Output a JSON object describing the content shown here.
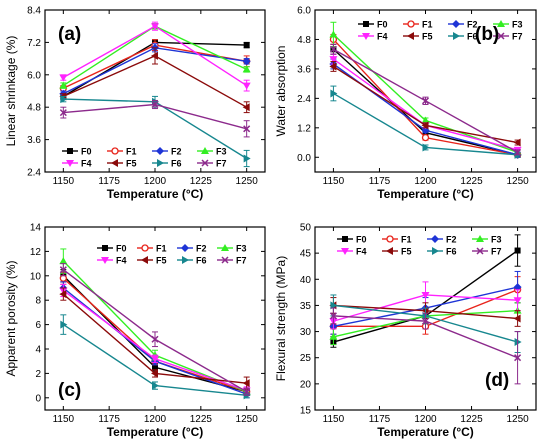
{
  "colors": {
    "F0": "#000000",
    "F1": "#e8241b",
    "F2": "#1e34d6",
    "F3": "#33ee22",
    "F4": "#ff22ff",
    "F5": "#8b0a0a",
    "F6": "#17878f",
    "F7": "#8c2a8c"
  },
  "markers": {
    "F0": "square",
    "F1": "circle",
    "F2": "diamond",
    "F3": "triangle-up",
    "F4": "triangle-down",
    "F5": "triangle-left",
    "F6": "triangle-right",
    "F7": "x"
  },
  "chart_data": [
    {
      "type": "line",
      "panel_label": "(a)",
      "xlabel": "Temperature (°C)",
      "ylabel": "Linear shrinkage (%)",
      "xlim": [
        1140,
        1260
      ],
      "ylim": [
        2.4,
        8.4
      ],
      "xticks": [
        1150,
        1175,
        1200,
        1225,
        1250
      ],
      "yticks": [
        2.4,
        3.6,
        4.8,
        6.0,
        7.2,
        8.4
      ],
      "legend": "bottom-center, 4 columns",
      "x": [
        1150,
        1200,
        1250
      ],
      "series": [
        {
          "name": "F0",
          "values": [
            5.2,
            7.2,
            7.1
          ],
          "err": [
            0.1,
            0.1,
            0.1
          ]
        },
        {
          "name": "F1",
          "values": [
            5.5,
            7.1,
            6.5
          ],
          "err": [
            0.1,
            0.2,
            0.2
          ]
        },
        {
          "name": "F2",
          "values": [
            5.3,
            7.0,
            6.5
          ],
          "err": [
            0.1,
            0.15,
            0.1
          ]
        },
        {
          "name": "F3",
          "values": [
            5.6,
            7.8,
            6.2
          ],
          "err": [
            0.1,
            0.1,
            0.1
          ]
        },
        {
          "name": "F4",
          "values": [
            5.9,
            7.8,
            5.6
          ],
          "err": [
            0.1,
            0.15,
            0.2
          ]
        },
        {
          "name": "F5",
          "values": [
            5.2,
            6.7,
            4.8
          ],
          "err": [
            0.1,
            0.3,
            0.2
          ]
        },
        {
          "name": "F6",
          "values": [
            5.1,
            5.0,
            2.9
          ],
          "err": [
            0.1,
            0.2,
            0.3
          ]
        },
        {
          "name": "F7",
          "values": [
            4.6,
            4.9,
            4.0
          ],
          "err": [
            0.2,
            0.15,
            0.3
          ]
        }
      ]
    },
    {
      "type": "line",
      "panel_label": "(b)",
      "xlabel": "Temperature (°C)",
      "ylabel": "Water absorption",
      "xlim": [
        1140,
        1260
      ],
      "ylim": [
        -0.6,
        6.0
      ],
      "xticks": [
        1150,
        1175,
        1200,
        1225,
        1250
      ],
      "yticks": [
        0.0,
        1.2,
        2.4,
        3.6,
        4.8,
        6.0
      ],
      "legend": "top-right, 4 columns",
      "x": [
        1150,
        1200,
        1250
      ],
      "series": [
        {
          "name": "F0",
          "values": [
            4.4,
            1.0,
            0.1
          ],
          "err": [
            0.2,
            0.1,
            0.1
          ]
        },
        {
          "name": "F1",
          "values": [
            4.8,
            0.8,
            0.1
          ],
          "err": [
            0.2,
            0.1,
            0.1
          ]
        },
        {
          "name": "F2",
          "values": [
            3.8,
            1.1,
            0.1
          ],
          "err": [
            0.2,
            0.1,
            0.1
          ]
        },
        {
          "name": "F3",
          "values": [
            5.0,
            1.5,
            0.2
          ],
          "err": [
            0.5,
            0.1,
            0.1
          ]
        },
        {
          "name": "F4",
          "values": [
            4.0,
            1.3,
            0.3
          ],
          "err": [
            0.2,
            0.1,
            0.1
          ]
        },
        {
          "name": "F5",
          "values": [
            3.7,
            1.3,
            0.6
          ],
          "err": [
            0.2,
            0.1,
            0.1
          ]
        },
        {
          "name": "F6",
          "values": [
            2.6,
            0.4,
            0.1
          ],
          "err": [
            0.3,
            0.1,
            0.1
          ]
        },
        {
          "name": "F7",
          "values": [
            4.4,
            2.3,
            0.2
          ],
          "err": [
            0.2,
            0.15,
            0.1
          ]
        }
      ]
    },
    {
      "type": "line",
      "panel_label": "(c)",
      "xlabel": "Temperature (°C)",
      "ylabel": "Apparent porosity (%)",
      "xlim": [
        1140,
        1260
      ],
      "ylim": [
        -1,
        14
      ],
      "xticks": [
        1150,
        1175,
        1200,
        1225,
        1250
      ],
      "yticks": [
        0,
        2,
        4,
        6,
        8,
        10,
        12,
        14
      ],
      "legend": "top-right, 4 columns",
      "x": [
        1150,
        1200,
        1250
      ],
      "series": [
        {
          "name": "F0",
          "values": [
            10.0,
            2.5,
            0.5
          ],
          "err": [
            0.5,
            0.3,
            0.3
          ]
        },
        {
          "name": "F1",
          "values": [
            9.8,
            3.0,
            0.5
          ],
          "err": [
            0.5,
            0.3,
            0.3
          ]
        },
        {
          "name": "F2",
          "values": [
            9.0,
            3.0,
            0.3
          ],
          "err": [
            0.5,
            0.3,
            0.3
          ]
        },
        {
          "name": "F3",
          "values": [
            11.2,
            3.5,
            0.5
          ],
          "err": [
            1.0,
            0.4,
            0.3
          ]
        },
        {
          "name": "F4",
          "values": [
            8.8,
            3.2,
            0.6
          ],
          "err": [
            0.5,
            0.3,
            0.3
          ]
        },
        {
          "name": "F5",
          "values": [
            8.5,
            2.0,
            1.2
          ],
          "err": [
            0.5,
            0.3,
            0.5
          ]
        },
        {
          "name": "F6",
          "values": [
            6.0,
            1.0,
            0.2
          ],
          "err": [
            0.8,
            0.3,
            0.2
          ]
        },
        {
          "name": "F7",
          "values": [
            10.5,
            4.8,
            0.5
          ],
          "err": [
            0.5,
            0.6,
            0.3
          ]
        }
      ]
    },
    {
      "type": "line",
      "panel_label": "(d)",
      "xlabel": "Temperature (°C)",
      "ylabel": "Flexural strength (MPa)",
      "xlim": [
        1140,
        1260
      ],
      "ylim": [
        15,
        50
      ],
      "xticks": [
        1150,
        1175,
        1200,
        1225,
        1250
      ],
      "yticks": [
        15,
        20,
        25,
        30,
        35,
        40,
        45,
        50
      ],
      "legend": "top-left, 4 columns",
      "x": [
        1150,
        1200,
        1250
      ],
      "series": [
        {
          "name": "F0",
          "values": [
            28,
            33,
            45.5
          ],
          "err": [
            1.0,
            1.5,
            3.0
          ]
        },
        {
          "name": "F1",
          "values": [
            31,
            31,
            38
          ],
          "err": [
            1.5,
            1.5,
            2.5
          ]
        },
        {
          "name": "F2",
          "values": [
            31,
            34.5,
            38.5
          ],
          "err": [
            1.5,
            2.0,
            3.0
          ]
        },
        {
          "name": "F3",
          "values": [
            29,
            33,
            34
          ],
          "err": [
            1.5,
            1.5,
            1.5
          ]
        },
        {
          "name": "F4",
          "values": [
            32,
            37,
            36
          ],
          "err": [
            1.5,
            2.5,
            2.0
          ]
        },
        {
          "name": "F5",
          "values": [
            35,
            34,
            32.5
          ],
          "err": [
            1.5,
            1.5,
            1.5
          ]
        },
        {
          "name": "F6",
          "values": [
            35,
            33,
            28
          ],
          "err": [
            2.0,
            1.5,
            2.0
          ]
        },
        {
          "name": "F7",
          "values": [
            33,
            32,
            25
          ],
          "err": [
            1.5,
            1.5,
            5.0
          ]
        }
      ]
    }
  ]
}
